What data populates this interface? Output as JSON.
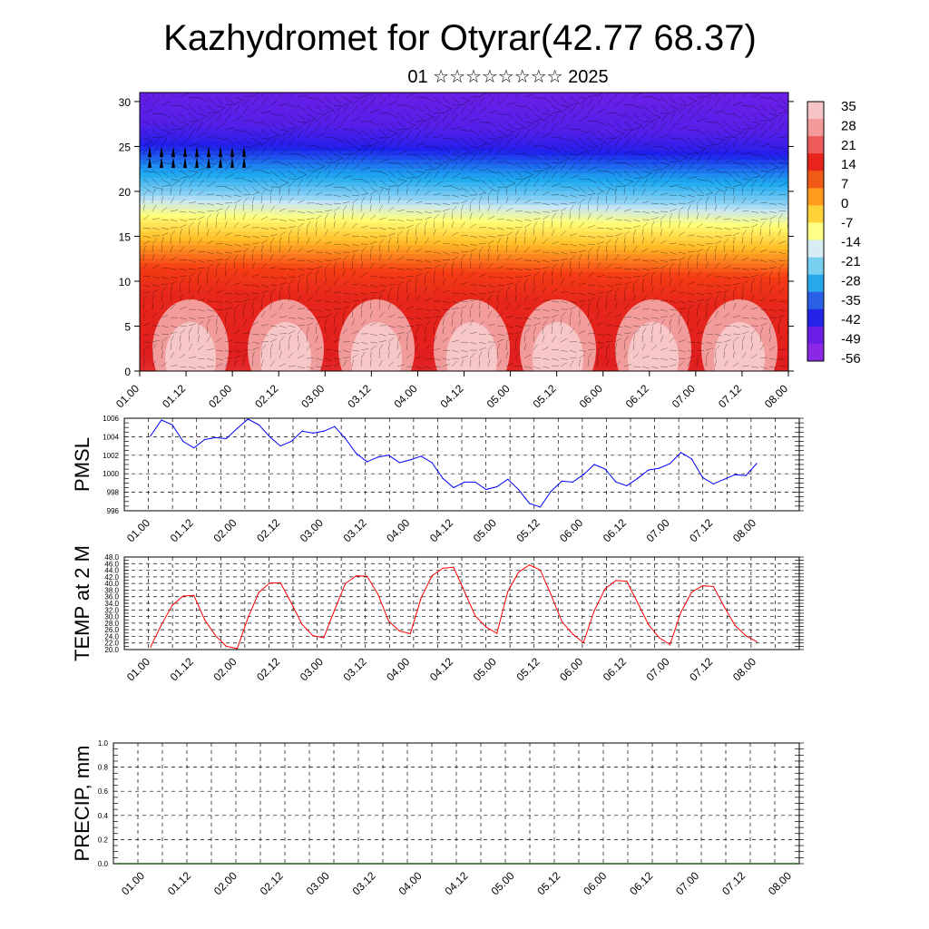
{
  "title": "Kazhydromet for Otyrar(42.77 68.37)",
  "subtitle": "01 ☆☆☆☆☆☆☆☆ 2025",
  "time_ticks": [
    "01.00",
    "01.12",
    "02.00",
    "02.12",
    "03.00",
    "03.12",
    "04.00",
    "04.12",
    "05.00",
    "05.12",
    "06.00",
    "06.12",
    "07.00",
    "07.12",
    "08.00"
  ],
  "chart_data": [
    {
      "type": "heatmap",
      "name_on_chart": "",
      "x_categories": [
        "01.00",
        "01.12",
        "02.00",
        "02.12",
        "03.00",
        "03.12",
        "04.00",
        "04.12",
        "05.00",
        "05.12",
        "06.00",
        "06.12",
        "07.00",
        "07.12",
        "08.00"
      ],
      "y_ticks": [
        0,
        5,
        10,
        15,
        20,
        25,
        30
      ],
      "ylim": [
        0,
        31
      ],
      "colorbar_labels": [
        "35",
        "28",
        "21",
        "14",
        "7",
        "0",
        "-7",
        "-14",
        "-21",
        "-28",
        "-35",
        "-42",
        "-49",
        "-56"
      ],
      "colors": {
        "low": "#7a1fe6",
        "mid": "#ffff66",
        "high": "#f03c1e",
        "peak": "#f7c7c7"
      },
      "wind_vectors": "overlay"
    },
    {
      "type": "line",
      "ylabel": "PMSL",
      "y_ticks": [
        "996",
        "998",
        "1000",
        "1002",
        "1004",
        "1006"
      ],
      "ylim": [
        996,
        1006
      ],
      "x_ticks": [
        "01.00",
        "01.12",
        "02.00",
        "02.12",
        "03.00",
        "03.12",
        "04.00",
        "04.12",
        "05.00",
        "05.12",
        "06.00",
        "06.12",
        "07.00",
        "07.12",
        "08.00"
      ],
      "color": "#0000ff",
      "values": [
        1004.1,
        1005.8,
        1005.3,
        1003.5,
        1002.8,
        1003.7,
        1003.9,
        1003.8,
        1004.9,
        1005.9,
        1005.3,
        1004.0,
        1003.0,
        1003.5,
        1004.6,
        1004.4,
        1004.6,
        1005.1,
        1003.8,
        1002.2,
        1001.3,
        1001.8,
        1002.0,
        1001.2,
        1001.5,
        1001.9,
        1001.2,
        999.5,
        998.5,
        999.1,
        999.1,
        998.3,
        998.6,
        999.4,
        998.3,
        996.8,
        996.4,
        998.1,
        999.2,
        999.1,
        999.9,
        1001.0,
        1000.5,
        999.1,
        998.7,
        999.5,
        1000.4,
        1000.6,
        1001.1,
        1002.3,
        1001.6,
        999.6,
        998.9,
        999.4,
        999.9,
        999.8,
        1001.1
      ]
    },
    {
      "type": "line",
      "ylabel": "TEMP at 2 M",
      "y_ticks": [
        "20.0",
        "24.0",
        "28.0",
        "32.0",
        "36.0",
        "40.0",
        "44.0",
        "48.0"
      ],
      "y_ticks_all": [
        "20.0",
        "22.0",
        "24.0",
        "26.0",
        "28.0",
        "30.0",
        "32.0",
        "34.0",
        "36.0",
        "38.0",
        "40.0",
        "42.0",
        "44.0",
        "46.0",
        "48.0"
      ],
      "ylim": [
        20,
        48
      ],
      "x_ticks": [
        "01.00",
        "01.12",
        "02.00",
        "02.12",
        "03.00",
        "03.12",
        "04.00",
        "04.12",
        "05.00",
        "05.12",
        "06.00",
        "06.12",
        "07.00",
        "07.12",
        "08.00"
      ],
      "color": "#ff0000",
      "values": [
        20.8,
        27.5,
        33.4,
        36.2,
        36.4,
        29.0,
        24.2,
        21.0,
        20.3,
        29.6,
        37.3,
        40.1,
        40.2,
        34.1,
        27.6,
        24.2,
        23.6,
        32.0,
        40.0,
        42.3,
        42.2,
        36.8,
        28.6,
        25.6,
        24.8,
        35.7,
        42.3,
        44.6,
        44.9,
        37.6,
        30.2,
        26.8,
        24.9,
        37.5,
        43.4,
        45.6,
        44.1,
        36.6,
        28.5,
        24.7,
        22.1,
        31.8,
        38.4,
        40.9,
        40.7,
        34.2,
        27.6,
        23.6,
        21.5,
        31.3,
        37.4,
        39.3,
        39.1,
        33.0,
        27.3,
        24.2,
        22.4
      ]
    },
    {
      "type": "bar",
      "ylabel": "PRECIP, mm",
      "y_ticks": [
        "0.0",
        "0.2",
        "0.4",
        "0.6",
        "0.8",
        "1.0"
      ],
      "ylim": [
        0,
        1
      ],
      "x_ticks": [
        "01.00",
        "01.12",
        "02.00",
        "02.12",
        "03.00",
        "03.12",
        "04.00",
        "04.12",
        "05.00",
        "05.12",
        "06.00",
        "06.12",
        "07.00",
        "07.12",
        "08.00"
      ],
      "values": [
        0,
        0,
        0,
        0,
        0,
        0,
        0,
        0,
        0,
        0,
        0,
        0,
        0,
        0,
        0,
        0,
        0,
        0,
        0,
        0,
        0,
        0,
        0,
        0,
        0,
        0,
        0,
        0,
        0,
        0,
        0,
        0,
        0,
        0,
        0,
        0,
        0,
        0,
        0,
        0,
        0,
        0,
        0,
        0,
        0,
        0,
        0,
        0,
        0,
        0,
        0,
        0,
        0,
        0,
        0,
        0,
        0
      ]
    }
  ]
}
